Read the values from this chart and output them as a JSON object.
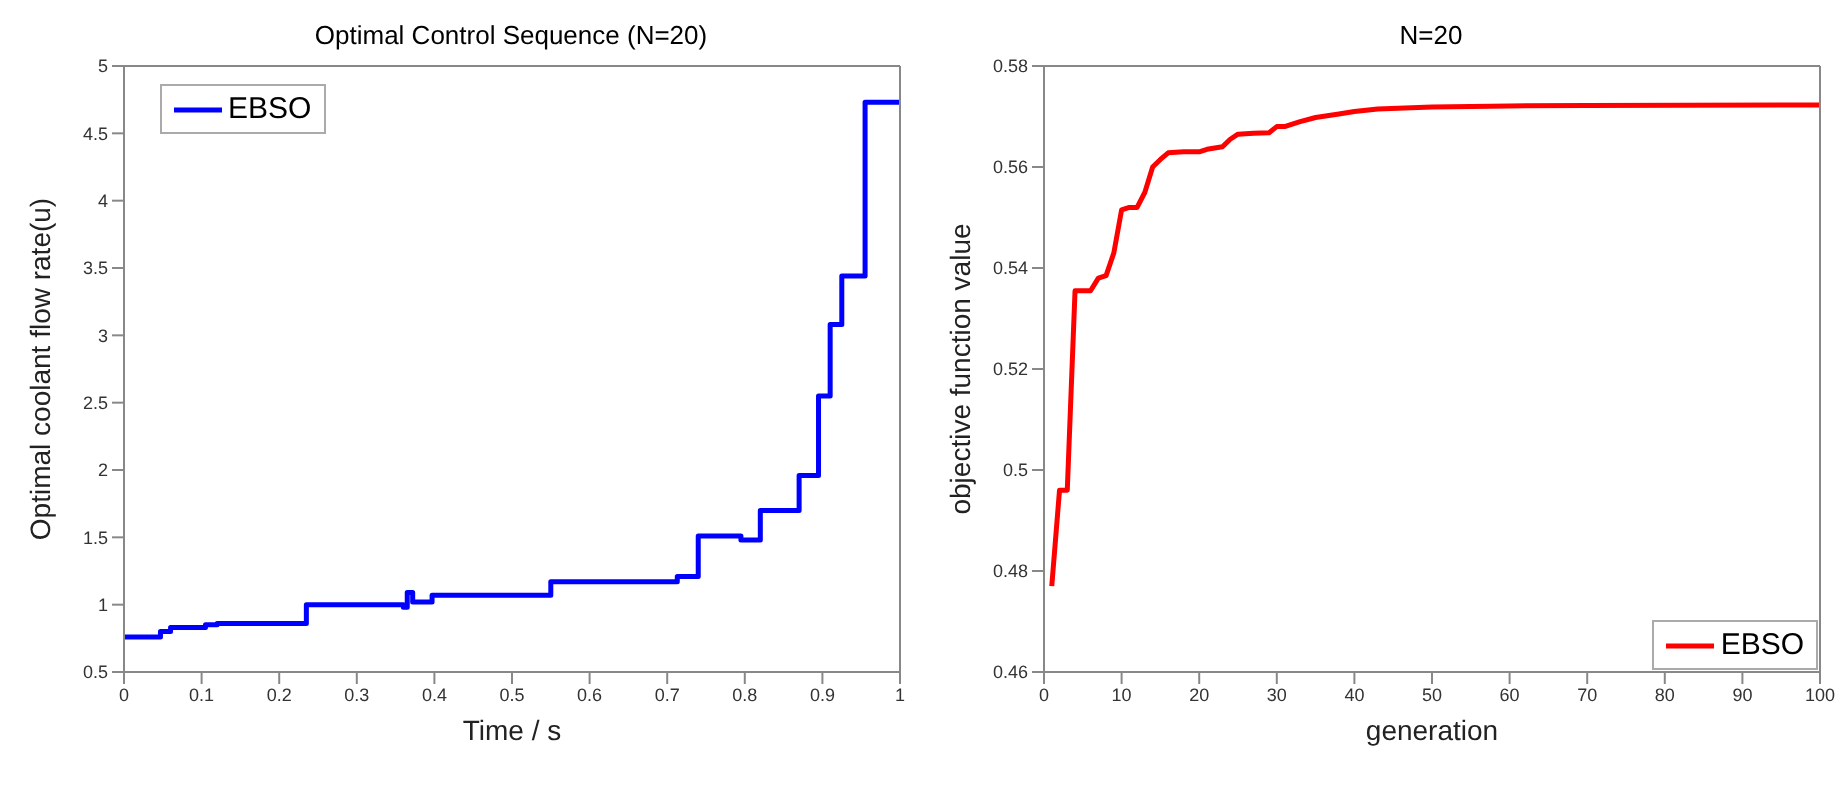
{
  "chart_data": [
    {
      "type": "step",
      "title": "Optimal Control Sequence (N=20)",
      "xlabel": "Time / s",
      "ylabel": "Optimal coolant flow rate(u)",
      "x": [
        0,
        0.047,
        0.06,
        0.105,
        0.12,
        0.235,
        0.36,
        0.365,
        0.372,
        0.397,
        0.55,
        0.713,
        0.74,
        0.795,
        0.82,
        0.87,
        0.895,
        0.91,
        0.925,
        0.955,
        1
      ],
      "series": [
        {
          "name": "EBSO",
          "color": "#0000ff",
          "values": [
            0.76,
            0.8,
            0.83,
            0.85,
            0.86,
            1.0,
            0.98,
            1.09,
            1.02,
            1.07,
            1.17,
            1.21,
            1.51,
            1.48,
            1.7,
            1.96,
            2.55,
            3.08,
            3.44,
            4.73,
            4.73
          ]
        }
      ],
      "xlim": [
        0,
        1
      ],
      "xticks": [
        0,
        0.1,
        0.2,
        0.3,
        0.4,
        0.5,
        0.6,
        0.7,
        0.8,
        0.9,
        1
      ],
      "ylim": [
        0.5,
        5
      ],
      "yticks": [
        0.5,
        1,
        1.5,
        2,
        2.5,
        3,
        3.5,
        4,
        4.5,
        5
      ],
      "legend": "top left",
      "grid": false,
      "marker": "none",
      "line_style": "solid"
    },
    {
      "type": "line",
      "title": "N=20",
      "xlabel": "generation",
      "ylabel": "objective function value",
      "x": [
        1,
        2,
        3,
        4,
        5,
        6,
        7,
        8,
        9,
        10,
        11,
        12,
        13,
        14,
        15,
        16,
        18,
        20,
        21,
        23,
        24,
        25,
        27,
        29,
        30,
        31,
        33,
        35,
        38,
        40,
        43,
        50,
        60,
        70,
        100
      ],
      "series": [
        {
          "name": "EBSO",
          "color": "#ff0000",
          "values": [
            0.477,
            0.496,
            0.496,
            0.5355,
            0.5355,
            0.5355,
            0.538,
            0.5385,
            0.543,
            0.5515,
            0.552,
            0.552,
            0.555,
            0.56,
            0.5615,
            0.5628,
            0.563,
            0.563,
            0.5635,
            0.564,
            0.5655,
            0.5665,
            0.5667,
            0.5668,
            0.568,
            0.568,
            0.569,
            0.5698,
            0.5705,
            0.571,
            0.5715,
            0.5719,
            0.5721,
            0.5722,
            0.5723
          ]
        }
      ],
      "xlim": [
        0,
        100
      ],
      "xticks": [
        0,
        10,
        20,
        30,
        40,
        50,
        60,
        70,
        80,
        90,
        100
      ],
      "ylim": [
        0.46,
        0.58
      ],
      "yticks": [
        0.46,
        0.48,
        0.5,
        0.52,
        0.54,
        0.56,
        0.58
      ],
      "legend": "bottom right",
      "grid": false,
      "marker": "none",
      "line_style": "solid"
    }
  ]
}
